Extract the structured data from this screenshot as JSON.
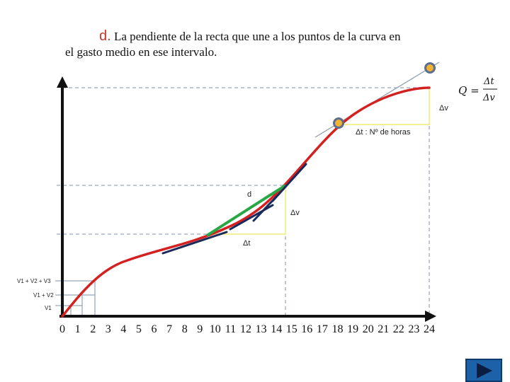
{
  "heading": {
    "letter": "d.",
    "line1": " La pendiente de la recta que une a los puntos de la curva en",
    "line2": "el gasto medio en ese intervalo."
  },
  "labels": {
    "formula_q": "Q =",
    "formula_num": "Δt",
    "formula_den": "Δv",
    "top_dv": "Δv",
    "top_dt": "Δt : Nº de horas",
    "mid_d": "d",
    "mid_dv": "Δv",
    "mid_dt": "Δt",
    "y_v1v2v3": "V1 + V2 + V3",
    "y_v1v2": "V1 + V2",
    "y_v1": "V1"
  },
  "x_ticks": [
    "0",
    "1",
    "2",
    "3",
    "4",
    "5",
    "6",
    "7",
    "8",
    "9",
    "10",
    "11",
    "12",
    "13",
    "14",
    "15",
    "16",
    "17",
    "18",
    "19",
    "20",
    "21",
    "22",
    "23",
    "24"
  ],
  "colors": {
    "curve": "#d32020",
    "secant": "#27a844",
    "tangent": "#1a2a5a",
    "guide": "#7f8fa6",
    "triangle": "#f0ea7a",
    "point_fill": "#f2b233",
    "point_ring": "#5b6e8f",
    "heading_letter": "#c0392b"
  },
  "nav": {
    "icon": "play-next-icon"
  }
}
